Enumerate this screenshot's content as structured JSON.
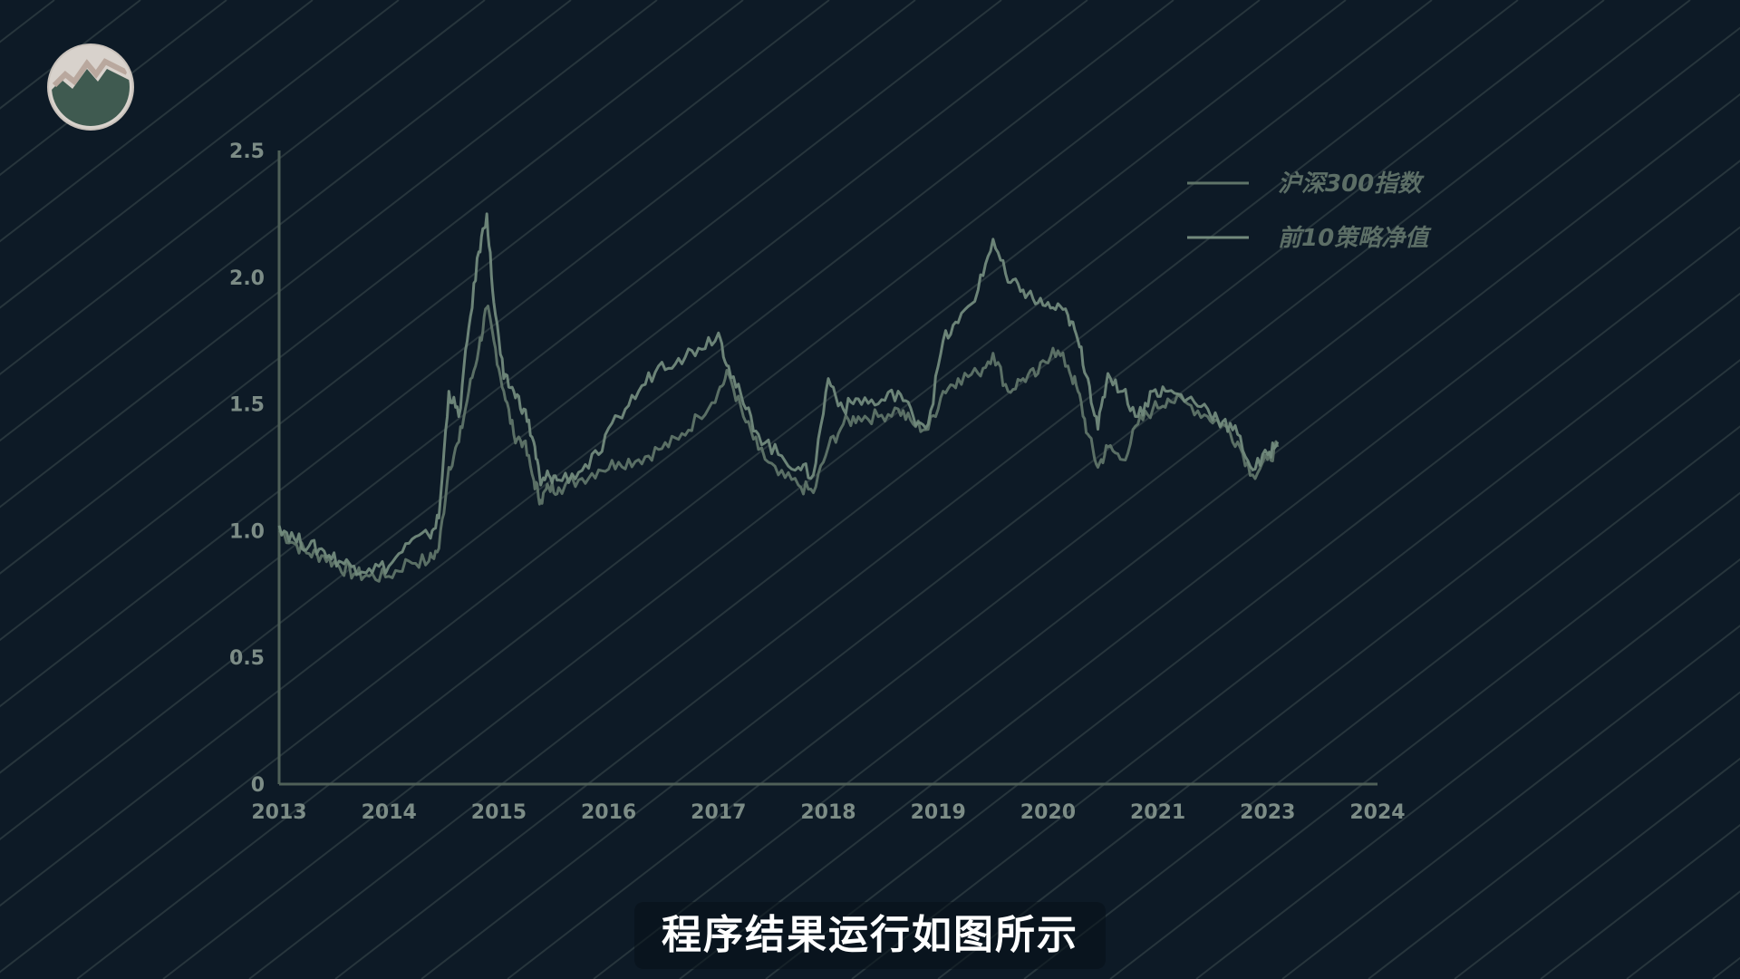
{
  "colors": {
    "background": "#0d1a26",
    "stripe": "#5a6a66",
    "axis": "#4f6058",
    "series_index": "#5f7468",
    "series_strategy": "#728a7c",
    "logo_fill": "#3f5a50",
    "logo_ring": "#d8d2cc"
  },
  "logo": {
    "icon": "mountain-peak-logo-icon"
  },
  "subtitle": "程序结果运行如图所示",
  "chart_data": {
    "type": "line",
    "title": "",
    "xlabel": "",
    "ylabel": "",
    "ylim": [
      0,
      2.5
    ],
    "xlim": [
      2013,
      2024
    ],
    "y_ticks": [
      0,
      0.5,
      1.0,
      1.5,
      2.0,
      2.5
    ],
    "y_tick_labels": [
      "0",
      "0.5",
      "1.0",
      "1.5",
      "2.0",
      "2.5"
    ],
    "x_tick_labels": [
      "2013",
      "2014",
      "2015",
      "2016",
      "2017",
      "2018",
      "2019",
      "2020",
      "2021",
      "2023",
      "2024"
    ],
    "grid": false,
    "legend_position": "top-right",
    "series": [
      {
        "name": "沪深300指数",
        "x": [
          2013.0,
          2013.15,
          2013.3,
          2013.45,
          2013.6,
          2013.75,
          2013.9,
          2014.1,
          2014.3,
          2014.5,
          2014.6,
          2014.7,
          2014.8,
          2014.9,
          2015.0,
          2015.08,
          2015.15,
          2015.25,
          2015.35,
          2015.45,
          2015.55,
          2015.62,
          2015.7,
          2015.8,
          2016.0,
          2016.2,
          2016.4,
          2016.6,
          2016.8,
          2017.0,
          2017.2,
          2017.4,
          2017.5,
          2017.65,
          2017.8,
          2018.0,
          2018.2,
          2018.35,
          2018.5,
          2018.65,
          2018.8,
          2019.0,
          2019.2,
          2019.35,
          2019.5,
          2019.65,
          2019.8,
          2020.0,
          2020.15,
          2020.3,
          2020.45,
          2020.6,
          2020.75,
          2020.9,
          2021.0,
          2021.1,
          2021.2,
          2021.3,
          2021.45,
          2021.6,
          2021.75,
          2021.9,
          2022.1,
          2022.3,
          2022.45,
          2022.6,
          2022.75,
          2022.9,
          2023.0
        ],
        "y": [
          1.0,
          0.95,
          0.91,
          0.9,
          0.86,
          0.83,
          0.82,
          0.82,
          0.88,
          0.88,
          0.93,
          1.25,
          1.35,
          1.55,
          1.72,
          1.88,
          1.75,
          1.55,
          1.38,
          1.35,
          1.2,
          1.12,
          1.17,
          1.17,
          1.2,
          1.24,
          1.27,
          1.28,
          1.32,
          1.36,
          1.45,
          1.55,
          1.62,
          1.45,
          1.32,
          1.22,
          1.18,
          1.15,
          1.33,
          1.42,
          1.45,
          1.45,
          1.48,
          1.42,
          1.4,
          1.55,
          1.6,
          1.62,
          1.7,
          1.55,
          1.6,
          1.62,
          1.72,
          1.65,
          1.55,
          1.38,
          1.25,
          1.33,
          1.28,
          1.42,
          1.48,
          1.52,
          1.5,
          1.45,
          1.42,
          1.35,
          1.22,
          1.28,
          1.33
        ]
      },
      {
        "name": "前10策略净值",
        "x": [
          2013.0,
          2013.15,
          2013.3,
          2013.45,
          2013.6,
          2013.75,
          2013.9,
          2014.1,
          2014.3,
          2014.5,
          2014.6,
          2014.7,
          2014.8,
          2014.9,
          2015.0,
          2015.08,
          2015.15,
          2015.25,
          2015.35,
          2015.45,
          2015.55,
          2015.62,
          2015.7,
          2015.8,
          2016.0,
          2016.2,
          2016.4,
          2016.6,
          2016.8,
          2017.0,
          2017.2,
          2017.4,
          2017.5,
          2017.65,
          2017.8,
          2018.0,
          2018.2,
          2018.35,
          2018.5,
          2018.65,
          2018.8,
          2019.0,
          2019.2,
          2019.35,
          2019.5,
          2019.65,
          2019.8,
          2020.0,
          2020.15,
          2020.3,
          2020.45,
          2020.6,
          2020.75,
          2020.9,
          2021.0,
          2021.1,
          2021.2,
          2021.3,
          2021.45,
          2021.6,
          2021.75,
          2021.9,
          2022.1,
          2022.3,
          2022.45,
          2022.6,
          2022.75,
          2022.9,
          2023.0
        ],
        "y": [
          1.02,
          0.97,
          0.94,
          0.92,
          0.88,
          0.86,
          0.85,
          0.86,
          0.95,
          0.98,
          1.05,
          1.55,
          1.45,
          1.8,
          2.1,
          2.25,
          1.9,
          1.6,
          1.55,
          1.48,
          1.35,
          1.18,
          1.22,
          1.2,
          1.23,
          1.3,
          1.45,
          1.55,
          1.65,
          1.68,
          1.72,
          1.78,
          1.65,
          1.5,
          1.38,
          1.3,
          1.25,
          1.22,
          1.6,
          1.48,
          1.52,
          1.5,
          1.55,
          1.45,
          1.42,
          1.75,
          1.82,
          1.95,
          2.15,
          1.98,
          1.95,
          1.9,
          1.88,
          1.85,
          1.75,
          1.6,
          1.4,
          1.62,
          1.55,
          1.45,
          1.55,
          1.55,
          1.52,
          1.48,
          1.43,
          1.38,
          1.24,
          1.3,
          1.35
        ]
      }
    ]
  }
}
